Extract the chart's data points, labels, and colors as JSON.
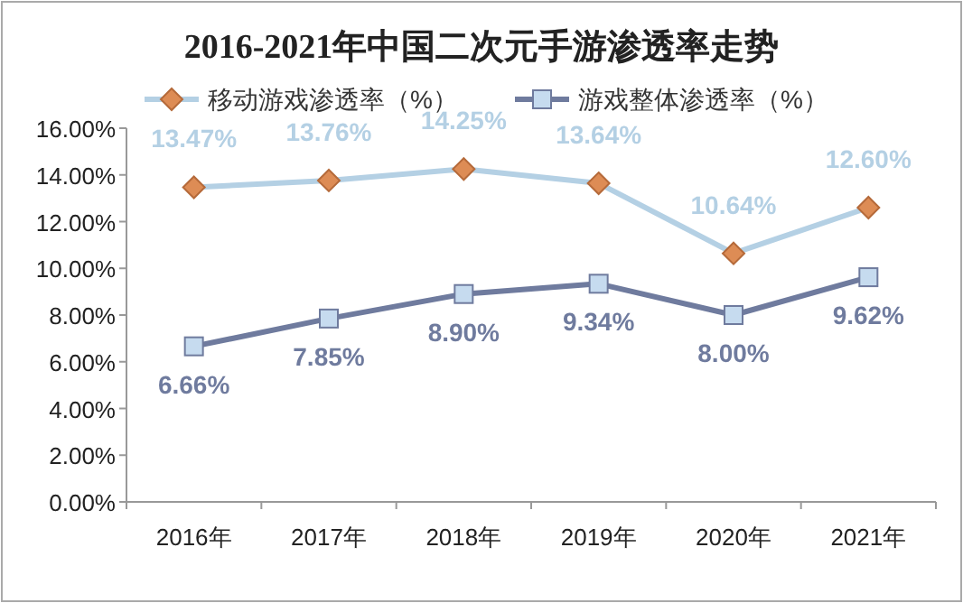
{
  "chart_data": {
    "type": "line",
    "title": "2016-2021年中国二次元手游渗透率走势",
    "categories": [
      "2016年",
      "2017年",
      "2018年",
      "2019年",
      "2020年",
      "2021年"
    ],
    "series": [
      {
        "name": "移动游戏渗透率（%）",
        "color": "#b4d0e4",
        "marker": "diamond",
        "values": [
          13.47,
          13.76,
          14.25,
          13.64,
          10.64,
          12.6
        ],
        "value_labels": [
          "13.47%",
          "13.76%",
          "14.25%",
          "13.64%",
          "10.64%",
          "12.60%"
        ]
      },
      {
        "name": "游戏整体渗透率（%）",
        "color": "#6f7b9e",
        "marker": "square",
        "values": [
          6.66,
          7.85,
          8.9,
          9.34,
          8.0,
          9.62
        ],
        "value_labels": [
          "6.66%",
          "7.85%",
          "8.90%",
          "9.34%",
          "8.00%",
          "9.62%"
        ]
      }
    ],
    "ylim": [
      0,
      16
    ],
    "yticks": [
      {
        "value": 0,
        "label": "0.00%"
      },
      {
        "value": 2,
        "label": "2.00%"
      },
      {
        "value": 4,
        "label": "4.00%"
      },
      {
        "value": 6,
        "label": "6.00%"
      },
      {
        "value": 8,
        "label": "8.00%"
      },
      {
        "value": 10,
        "label": "10.00%"
      },
      {
        "value": 12,
        "label": "12.00%"
      },
      {
        "value": 14,
        "label": "14.00%"
      },
      {
        "value": 16,
        "label": "16.00%"
      }
    ],
    "grid": false,
    "legend": "top",
    "line_style": "solid"
  }
}
